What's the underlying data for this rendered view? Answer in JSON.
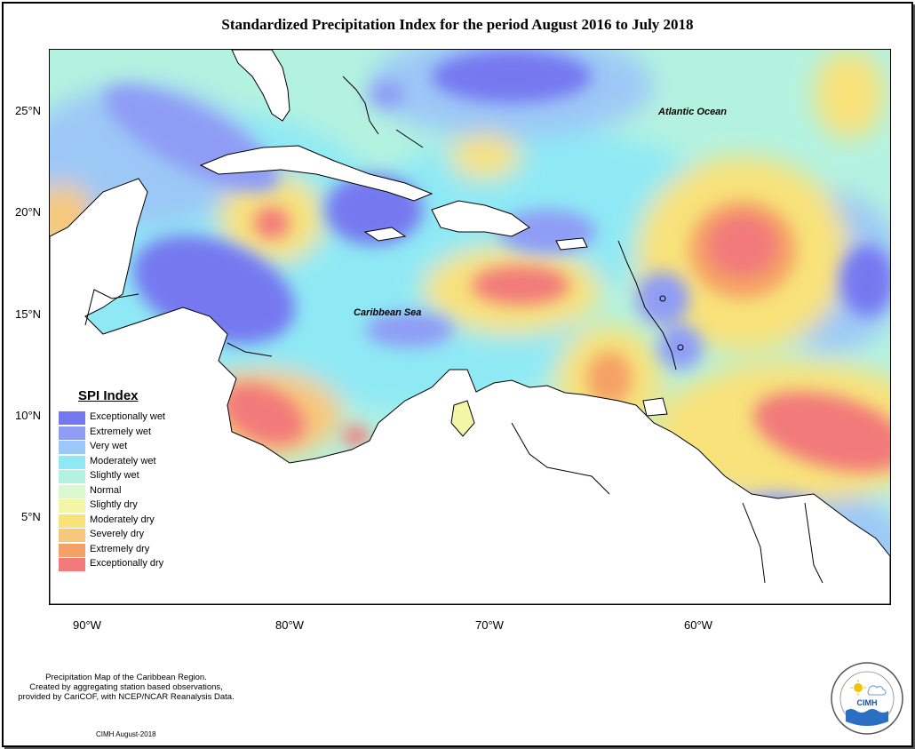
{
  "title": "Standardized Precipitation Index for the period August 2016 to July 2018",
  "map": {
    "latitude_labels": [
      "25°N",
      "20°N",
      "15°N",
      "10°N",
      "5°N"
    ],
    "longitude_labels": [
      "90°W",
      "80°W",
      "70°W",
      "60°W"
    ],
    "ocean_labels": {
      "atlantic": "Atlantic Ocean",
      "caribbean": "Caribbean Sea"
    }
  },
  "legend": {
    "title": "SPI Index",
    "items": [
      {
        "label": "Exceptionally wet",
        "color": "#7678f0"
      },
      {
        "label": "Extremely wet",
        "color": "#8f9cf5"
      },
      {
        "label": "Very wet",
        "color": "#9cc8f7"
      },
      {
        "label": "Moderately wet",
        "color": "#8fe9f5"
      },
      {
        "label": "Slightly wet",
        "color": "#b4f2e0"
      },
      {
        "label": "Normal",
        "color": "#d9f8cf"
      },
      {
        "label": "Slightly dry",
        "color": "#f2f6a6"
      },
      {
        "label": "Moderately dry",
        "color": "#f8e27a"
      },
      {
        "label": "Severely dry",
        "color": "#f8c87a"
      },
      {
        "label": "Extremely dry",
        "color": "#f5a066"
      },
      {
        "label": "Exceptionally dry",
        "color": "#f27a7a"
      }
    ]
  },
  "footer": {
    "line1": "Precipitation Map of the Caribbean Region.",
    "line2": "Created by aggregating station based observations,",
    "line3": "provided by CariCOF, with NCEP/NCAR Reanalysis Data.",
    "credit": "CIMH August-2018"
  },
  "logo": {
    "text": "CIMH",
    "ring_text": "Caribbean Institute for Meteorology and Hydrology"
  }
}
